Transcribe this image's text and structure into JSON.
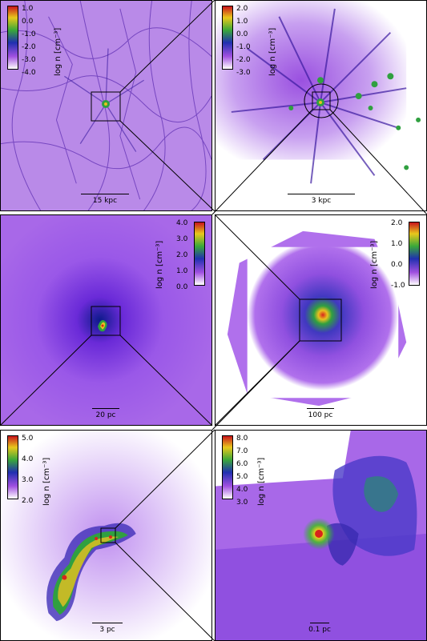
{
  "panels": [
    {
      "colorbar": {
        "ticks": [
          "1.0",
          "0.0",
          "-1.0",
          "-2.0",
          "-3.0",
          "-4.0"
        ],
        "label": "log n [cm⁻³]"
      },
      "scale_label": "15 kpc"
    },
    {
      "colorbar": {
        "ticks": [
          "2.0",
          "1.0",
          "0.0",
          "-1.0",
          "-2.0",
          "-3.0"
        ],
        "label": "log n [cm⁻³]"
      },
      "scale_label": "3 kpc"
    },
    {
      "colorbar": {
        "ticks": [
          "4.0",
          "3.0",
          "2.0",
          "1.0",
          "0.0"
        ],
        "label": "log n [cm⁻³]"
      },
      "scale_label": "20 pc"
    },
    {
      "colorbar": {
        "ticks": [
          "2.0",
          "1.0",
          "0.0",
          "-1.0"
        ],
        "label": "log n [cm⁻³]"
      },
      "scale_label": "100 pc"
    },
    {
      "colorbar": {
        "ticks": [
          "5.0",
          "4.0",
          "3.0",
          "2.0"
        ],
        "label": "log n [cm⁻³]"
      },
      "scale_label": "3 pc"
    },
    {
      "colorbar": {
        "ticks": [
          "8.0",
          "7.0",
          "6.0",
          "5.0",
          "4.0",
          "3.0"
        ],
        "label": "log n [cm⁻³]"
      },
      "scale_label": "0.1 pc"
    }
  ],
  "colors": {
    "bg_purple": "#b77ae8",
    "light_purple": "#e2c4f8",
    "dark_blue": "#2a1c7a",
    "green": "#34a83a",
    "yellow": "#e8d020",
    "red": "#d8241c"
  }
}
